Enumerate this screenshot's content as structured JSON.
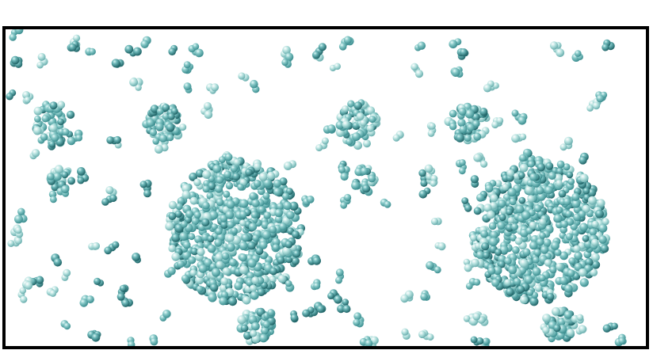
{
  "image": {
    "description_visible_text": "",
    "background_color": "#ffffff",
    "frame_color": "#000000",
    "colors": {
      "sphere_dark": "#2f8387",
      "sphere_mid": "#5fb1b2",
      "sphere_light": "#a9dcd9",
      "highlight": "#e9fbfa"
    },
    "icons": []
  }
}
